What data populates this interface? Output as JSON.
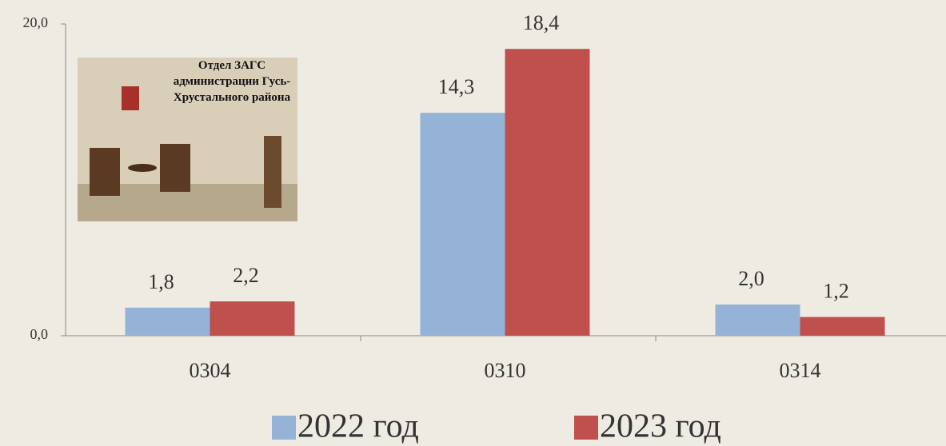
{
  "chart_data": {
    "type": "bar",
    "annotation": "Отдел ЗАГС администрации Гусь-Хрустального района",
    "categories": [
      "0304",
      "0310",
      "0314"
    ],
    "series": [
      {
        "name": "2022 год",
        "color": "#95b3d7",
        "values": [
          1.8,
          14.3,
          2.0
        ],
        "value_labels": [
          "1,8",
          "14,3",
          "2,0"
        ]
      },
      {
        "name": "2023 год",
        "color": "#c0504d",
        "values": [
          2.2,
          18.4,
          1.2
        ],
        "value_labels": [
          "2,2",
          "18,4",
          "1,2"
        ]
      }
    ],
    "ylim": [
      0,
      20
    ],
    "yticks": [
      {
        "value": 0,
        "label": "0,0"
      },
      {
        "value": 20,
        "label": "20,0"
      }
    ],
    "grid": false,
    "legend": "bottom"
  }
}
